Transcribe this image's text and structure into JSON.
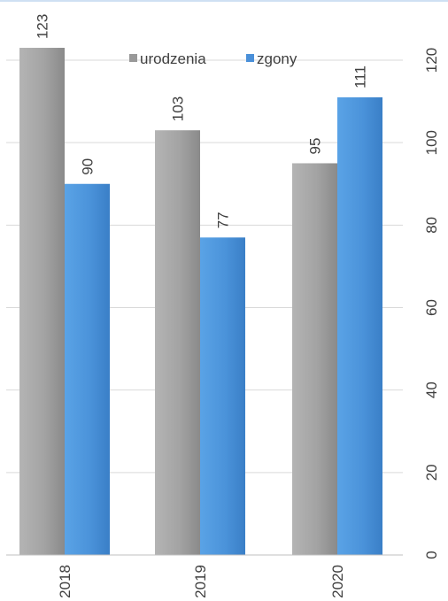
{
  "chart_data": {
    "type": "bar",
    "categories": [
      "2018",
      "2019",
      "2020"
    ],
    "series": [
      {
        "name": "urodzenia",
        "values": [
          123,
          103,
          95
        ],
        "color": "#999999"
      },
      {
        "name": "zgony",
        "values": [
          90,
          77,
          111
        ],
        "color": "#4a90d9"
      }
    ],
    "ylim": [
      0,
      120
    ],
    "yticks": [
      "0",
      "20",
      "40",
      "60",
      "80",
      "100",
      "120"
    ],
    "grid": true,
    "legend_position": "top"
  }
}
